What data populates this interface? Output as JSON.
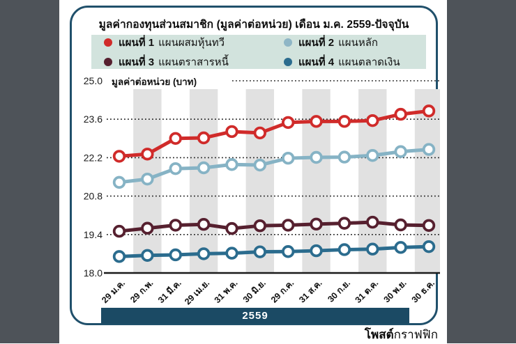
{
  "page": {
    "credit_bold": "โพสต์",
    "credit_regular": "กราฟฟิก"
  },
  "panel": {
    "title": "มูลค่ากองทุนส่วนสมาชิก (มูลค่าต่อหน่วย) เดือน ม.ค. 2559-ปัจจุบัน",
    "year_bar": "2559"
  },
  "legend": {
    "items": [
      {
        "plan": "แผนที่ 1",
        "name": "แผนผสมหุ้นทวี",
        "color": "#d02b2a"
      },
      {
        "plan": "แผนที่ 2",
        "name": "แผนหลัก",
        "color": "#8fb6c6"
      },
      {
        "plan": "แผนที่ 3",
        "name": "แผนตราสารหนี้",
        "color": "#56202f"
      },
      {
        "plan": "แผนที่ 4",
        "name": "แผนตลาดเงิน",
        "color": "#2b6c8e"
      }
    ]
  },
  "chart_data": {
    "type": "line",
    "title": "มูลค่ากองทุนส่วนสมาชิก (มูลค่าต่อหน่วย) เดือน ม.ค. 2559-ปัจจุบัน",
    "ylabel": "มูลค่าต่อหน่วย (บาท)",
    "xlabel": "2559",
    "x_labels": [
      "29 ม.ค.",
      "29 ก.พ.",
      "31 มี.ค.",
      "29 เม.ย.",
      "31 พ.ค.",
      "30 มิ.ย.",
      "29 ก.ค.",
      "31 ส.ค.",
      "30 ก.ย.",
      "31 ต.ค.",
      "30 พ.ย.",
      "30 ธ.ค."
    ],
    "y_ticks": [
      18.0,
      19.4,
      20.8,
      22.2,
      23.6,
      25.0
    ],
    "ylim": [
      18.0,
      25.0
    ],
    "grid": "horizontal dotted lines; alternating vertical gray bands on even columns",
    "legend_position": "top",
    "marker": "open circle (white fill, colored ring)",
    "series": [
      {
        "name": "แผนที่ 1 แผนผสมหุ้นทวี",
        "color": "#d02b2a",
        "values": [
          22.25,
          22.33,
          22.9,
          22.92,
          23.15,
          23.1,
          23.48,
          23.52,
          23.52,
          23.55,
          23.78,
          23.9
        ]
      },
      {
        "name": "แผนที่ 2 แผนหลัก",
        "color": "#86b3c5",
        "values": [
          21.3,
          21.42,
          21.8,
          21.83,
          21.95,
          21.93,
          22.18,
          22.21,
          22.22,
          22.28,
          22.42,
          22.5
        ]
      },
      {
        "name": "แผนที่ 3 แผนตราสารหนี้",
        "color": "#56202f",
        "values": [
          19.52,
          19.63,
          19.74,
          19.77,
          19.62,
          19.72,
          19.74,
          19.78,
          19.81,
          19.85,
          19.75,
          19.73
        ]
      },
      {
        "name": "แผนที่ 4 แผนตลาดเงิน",
        "color": "#2b6c8e",
        "values": [
          18.6,
          18.64,
          18.66,
          18.7,
          18.72,
          18.77,
          18.78,
          18.81,
          18.85,
          18.87,
          18.93,
          18.96
        ]
      }
    ],
    "colors": {
      "band_gray": "#e1e1e1",
      "gridline": "#222222",
      "axis": "#1a1a1a",
      "panel_border": "#20506b",
      "year_bar_bg": "#1b4a64",
      "legend_bg": "#d2e3dd",
      "page_side_bars": "#4e5359"
    }
  }
}
